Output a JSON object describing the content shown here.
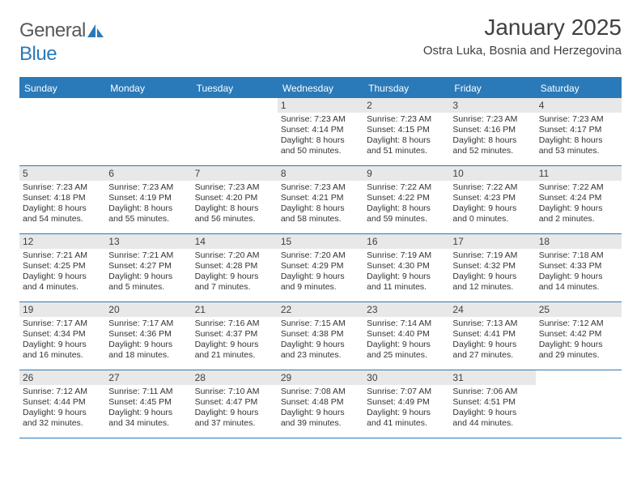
{
  "logo": {
    "text1": "General",
    "text2": "Blue"
  },
  "title": "January 2025",
  "location": "Ostra Luka, Bosnia and Herzegovina",
  "header_bg": "#2a7ab9",
  "header_fg": "#ffffff",
  "daynum_bg": "#e8e8e8",
  "divider_color": "#2a7ab9",
  "day_names": [
    "Sunday",
    "Monday",
    "Tuesday",
    "Wednesday",
    "Thursday",
    "Friday",
    "Saturday"
  ],
  "text_color": "#333333",
  "days": {
    "1": {
      "rise": "7:23 AM",
      "set": "4:14 PM",
      "dl": "8 hours and 50 minutes."
    },
    "2": {
      "rise": "7:23 AM",
      "set": "4:15 PM",
      "dl": "8 hours and 51 minutes."
    },
    "3": {
      "rise": "7:23 AM",
      "set": "4:16 PM",
      "dl": "8 hours and 52 minutes."
    },
    "4": {
      "rise": "7:23 AM",
      "set": "4:17 PM",
      "dl": "8 hours and 53 minutes."
    },
    "5": {
      "rise": "7:23 AM",
      "set": "4:18 PM",
      "dl": "8 hours and 54 minutes."
    },
    "6": {
      "rise": "7:23 AM",
      "set": "4:19 PM",
      "dl": "8 hours and 55 minutes."
    },
    "7": {
      "rise": "7:23 AM",
      "set": "4:20 PM",
      "dl": "8 hours and 56 minutes."
    },
    "8": {
      "rise": "7:23 AM",
      "set": "4:21 PM",
      "dl": "8 hours and 58 minutes."
    },
    "9": {
      "rise": "7:22 AM",
      "set": "4:22 PM",
      "dl": "8 hours and 59 minutes."
    },
    "10": {
      "rise": "7:22 AM",
      "set": "4:23 PM",
      "dl": "9 hours and 0 minutes."
    },
    "11": {
      "rise": "7:22 AM",
      "set": "4:24 PM",
      "dl": "9 hours and 2 minutes."
    },
    "12": {
      "rise": "7:21 AM",
      "set": "4:25 PM",
      "dl": "9 hours and 4 minutes."
    },
    "13": {
      "rise": "7:21 AM",
      "set": "4:27 PM",
      "dl": "9 hours and 5 minutes."
    },
    "14": {
      "rise": "7:20 AM",
      "set": "4:28 PM",
      "dl": "9 hours and 7 minutes."
    },
    "15": {
      "rise": "7:20 AM",
      "set": "4:29 PM",
      "dl": "9 hours and 9 minutes."
    },
    "16": {
      "rise": "7:19 AM",
      "set": "4:30 PM",
      "dl": "9 hours and 11 minutes."
    },
    "17": {
      "rise": "7:19 AM",
      "set": "4:32 PM",
      "dl": "9 hours and 12 minutes."
    },
    "18": {
      "rise": "7:18 AM",
      "set": "4:33 PM",
      "dl": "9 hours and 14 minutes."
    },
    "19": {
      "rise": "7:17 AM",
      "set": "4:34 PM",
      "dl": "9 hours and 16 minutes."
    },
    "20": {
      "rise": "7:17 AM",
      "set": "4:36 PM",
      "dl": "9 hours and 18 minutes."
    },
    "21": {
      "rise": "7:16 AM",
      "set": "4:37 PM",
      "dl": "9 hours and 21 minutes."
    },
    "22": {
      "rise": "7:15 AM",
      "set": "4:38 PM",
      "dl": "9 hours and 23 minutes."
    },
    "23": {
      "rise": "7:14 AM",
      "set": "4:40 PM",
      "dl": "9 hours and 25 minutes."
    },
    "24": {
      "rise": "7:13 AM",
      "set": "4:41 PM",
      "dl": "9 hours and 27 minutes."
    },
    "25": {
      "rise": "7:12 AM",
      "set": "4:42 PM",
      "dl": "9 hours and 29 minutes."
    },
    "26": {
      "rise": "7:12 AM",
      "set": "4:44 PM",
      "dl": "9 hours and 32 minutes."
    },
    "27": {
      "rise": "7:11 AM",
      "set": "4:45 PM",
      "dl": "9 hours and 34 minutes."
    },
    "28": {
      "rise": "7:10 AM",
      "set": "4:47 PM",
      "dl": "9 hours and 37 minutes."
    },
    "29": {
      "rise": "7:08 AM",
      "set": "4:48 PM",
      "dl": "9 hours and 39 minutes."
    },
    "30": {
      "rise": "7:07 AM",
      "set": "4:49 PM",
      "dl": "9 hours and 41 minutes."
    },
    "31": {
      "rise": "7:06 AM",
      "set": "4:51 PM",
      "dl": "9 hours and 44 minutes."
    }
  },
  "labels": {
    "sunrise": "Sunrise: ",
    "sunset": "Sunset: ",
    "daylight": "Daylight: "
  },
  "grid": [
    [
      null,
      null,
      null,
      1,
      2,
      3,
      4
    ],
    [
      5,
      6,
      7,
      8,
      9,
      10,
      11
    ],
    [
      12,
      13,
      14,
      15,
      16,
      17,
      18
    ],
    [
      19,
      20,
      21,
      22,
      23,
      24,
      25
    ],
    [
      26,
      27,
      28,
      29,
      30,
      31,
      null
    ]
  ]
}
